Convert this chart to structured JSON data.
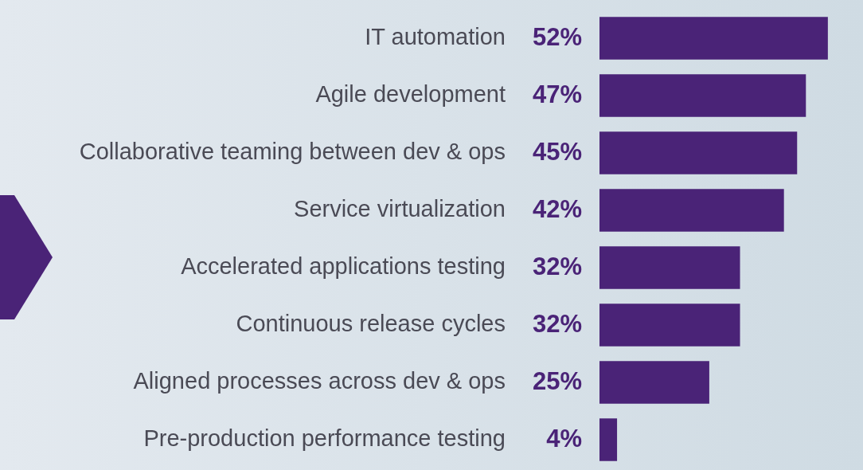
{
  "chart_data": {
    "type": "bar",
    "orientation": "horizontal",
    "categories": [
      "IT automation",
      "Agile development",
      "Collaborative teaming between dev & ops",
      "Service virtualization",
      "Accelerated applications testing",
      "Continuous release cycles",
      "Aligned processes across dev & ops",
      "Pre-production performance testing"
    ],
    "values": [
      52,
      47,
      45,
      42,
      32,
      32,
      25,
      4
    ],
    "value_labels": [
      "52%",
      "47%",
      "45%",
      "42%",
      "32%",
      "32%",
      "25%",
      "4%"
    ],
    "color": "#4a2377",
    "grid": false,
    "legend": false
  }
}
